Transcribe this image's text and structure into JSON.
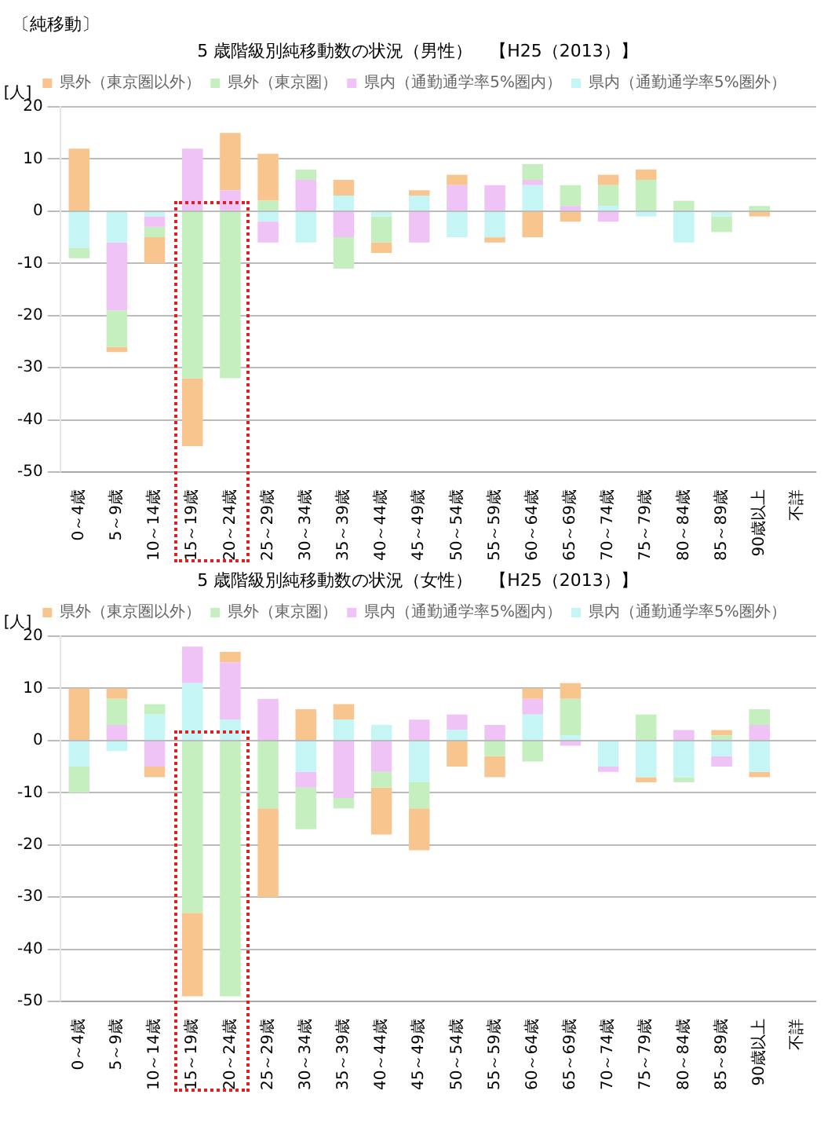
{
  "chart_data": [
    {
      "type": "bar",
      "annotations": [
        "〔純移動〕"
      ],
      "title": "5 歳階級別純移動数の状況（男性）　【H25（2013）】",
      "ylabel": "[人]",
      "categories": [
        "0～4歳",
        "5～9歳",
        "10～14歳",
        "15～19歳",
        "20～24歳",
        "25～29歳",
        "30～34歳",
        "35～39歳",
        "40～44歳",
        "45～49歳",
        "50～54歳",
        "55～59歳",
        "60～64歳",
        "65～69歳",
        "70～74歳",
        "75～79歳",
        "80～84歳",
        "85～89歳",
        "90歳以上",
        "不詳"
      ],
      "series": [
        {
          "name": "県内（通勤通学率5%圏外）",
          "color": "#c5f5f5",
          "values": [
            -7,
            -6,
            -1,
            0,
            0,
            -2,
            -6,
            3,
            -1,
            3,
            -5,
            -5,
            5,
            0,
            1,
            -1,
            -6,
            -1,
            0,
            0
          ]
        },
        {
          "name": "県内（通勤通学率5%圏内）",
          "color": "#efc3f5",
          "values": [
            0,
            -13,
            -2,
            12,
            4,
            -4,
            6,
            -5,
            0,
            -6,
            5,
            5,
            1,
            1,
            -2,
            0,
            0,
            0,
            0,
            0
          ]
        },
        {
          "name": "県外（東京圏）",
          "color": "#c6efc0",
          "values": [
            -2,
            -7,
            -2,
            -32,
            -32,
            2,
            2,
            -6,
            -5,
            0,
            0,
            0,
            3,
            4,
            4,
            6,
            2,
            -3,
            1,
            0
          ]
        },
        {
          "name": "県外（東京圏以外）",
          "color": "#f9c58f",
          "values": [
            12,
            -1,
            -5,
            -13,
            11,
            9,
            0,
            3,
            -2,
            1,
            2,
            -1,
            -5,
            -2,
            2,
            2,
            0,
            0,
            -1,
            0
          ]
        }
      ],
      "stacked": true,
      "ylim": [
        -50,
        20
      ],
      "yticks": [
        -50,
        -40,
        -30,
        -20,
        -10,
        0,
        10,
        20
      ],
      "grid": "y",
      "legend": "top"
    },
    {
      "type": "bar",
      "title": "5 歳階級別純移動数の状況（女性）　【H25（2013）】",
      "ylabel": "[人]",
      "categories": [
        "0～4歳",
        "5～9歳",
        "10～14歳",
        "15～19歳",
        "20～24歳",
        "25～29歳",
        "30～34歳",
        "35～39歳",
        "40～44歳",
        "45～49歳",
        "50～54歳",
        "55～59歳",
        "60～64歳",
        "65～69歳",
        "70～74歳",
        "75～79歳",
        "80～84歳",
        "85～89歳",
        "90歳以上",
        "不詳"
      ],
      "series": [
        {
          "name": "県内（通勤通学率5%圏外）",
          "color": "#c5f5f5",
          "values": [
            -5,
            -2,
            5,
            11,
            4,
            0,
            -6,
            4,
            3,
            -8,
            2,
            0,
            5,
            1,
            -5,
            -7,
            -7,
            -3,
            -6,
            0
          ]
        },
        {
          "name": "県内（通勤通学率5%圏内）",
          "color": "#efc3f5",
          "values": [
            0,
            3,
            -5,
            7,
            11,
            8,
            -3,
            -11,
            -6,
            4,
            3,
            3,
            3,
            -1,
            -1,
            0,
            2,
            -2,
            3,
            0
          ]
        },
        {
          "name": "県外（東京圏）",
          "color": "#c6efc0",
          "values": [
            -5,
            5,
            2,
            -33,
            -49,
            -13,
            -8,
            -2,
            -3,
            -5,
            0,
            -3,
            -4,
            7,
            0,
            5,
            -1,
            1,
            3,
            0
          ]
        },
        {
          "name": "県外（東京圏以外）",
          "color": "#f9c58f",
          "values": [
            10,
            2,
            -2,
            -16,
            2,
            -17,
            6,
            3,
            -9,
            -8,
            -5,
            -4,
            2,
            3,
            0,
            -1,
            0,
            1,
            -1,
            0
          ]
        }
      ],
      "stacked": true,
      "ylim": [
        -50,
        20
      ],
      "yticks": [
        -50,
        -40,
        -30,
        -20,
        -10,
        0,
        10,
        20
      ],
      "grid": "y",
      "legend": "top"
    }
  ]
}
